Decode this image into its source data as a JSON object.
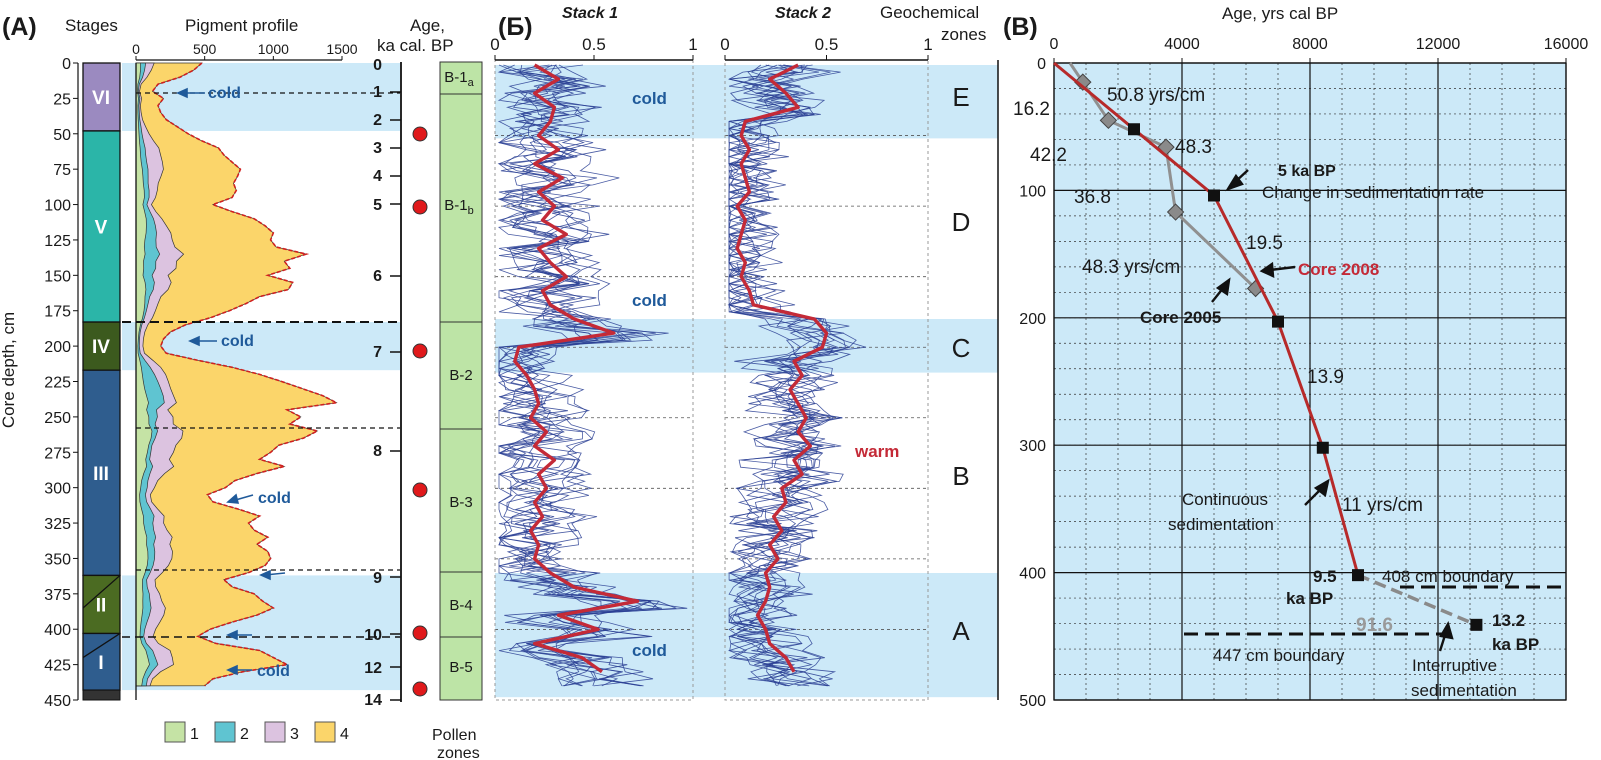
{
  "colors": {
    "band": "#cce9f8",
    "stack_mean": "#c42a37",
    "stack_lines": "#2a3f94",
    "age_line_2008": "#b72a2a",
    "age_line_2005": "#909090",
    "pollen": "#bde4a6",
    "cold_label": "#1f5a9a",
    "pigment_1": "#c5e3a5",
    "pigment_2": "#5fc4d1",
    "pigment_3": "#dcc3e0",
    "pigment_4": "#fbd56a",
    "stage_VI": "#9b8ac0",
    "stage_V": "#2bb5a8",
    "stage_IV": "#3c5a1e",
    "stage_III": "#2f5d8e",
    "stage_II": "#4b6b22",
    "stage_I": "#2f5d8e"
  },
  "panelA": {
    "panel_label": "(A)",
    "stages_header": "Stages",
    "pigment_header": "Pigment profile",
    "age_header_1": "Age,",
    "age_header_2": "ka cal. BP",
    "pollen_label_1": "Pollen",
    "pollen_label_2": "zones",
    "depth_label": "Core depth, cm",
    "cold_labels": [
      "cold",
      "cold",
      "cold",
      "cold"
    ],
    "legend": [
      "1",
      "2",
      "3",
      "4"
    ]
  },
  "panelB_cyr": {
    "panel_label": "(Б)",
    "stack1": "Stack 1",
    "stack2": "Stack 2",
    "geo_header_1": "Geochemical",
    "geo_header_2": "zones",
    "cold_1": "cold",
    "cold_2": "cold",
    "cold_3": "cold",
    "warm": "warm"
  },
  "panelB_lat": {
    "panel_label": "(B)",
    "age_axis_title": "Age, yrs cal BP",
    "rates": [
      "50.8 yrs/cm",
      "48.3",
      "16.2",
      "42.2",
      "36.8",
      "19.5",
      "48.3 yrs/cm",
      "13.9",
      "11 yrs/cm",
      "91.6"
    ],
    "annot_5ka": "5 ka BP",
    "annot_change": "Change in sedimentation rate",
    "annot_core2008": "Core 2008",
    "annot_core2005": "Core 2005",
    "annot_continuous_1": "Continuous",
    "annot_continuous_2": "sedimentation",
    "annot_95": "9.5",
    "annot_95b": "ka BP",
    "annot_132": "13.2",
    "annot_132b": "ka BP",
    "annot_408": "408 cm boundary",
    "annot_447": "447 cm boundary",
    "annot_interr_1": "Interruptive",
    "annot_interr_2": "sedimentation"
  },
  "chart_data": [
    {
      "type": "area",
      "title": "Pigment profile",
      "ylabel": "Core depth, cm",
      "ylim": [
        450,
        0
      ],
      "xlim": [
        0,
        1500
      ],
      "xticks": [
        0,
        500,
        1000,
        1500
      ],
      "yticks": [
        0,
        25,
        50,
        75,
        100,
        125,
        150,
        175,
        200,
        225,
        250,
        275,
        300,
        325,
        350,
        375,
        400,
        425,
        450
      ],
      "legend": [
        "1",
        "2",
        "3",
        "4"
      ],
      "stages": [
        {
          "name": "VI",
          "top": 0,
          "bottom": 48
        },
        {
          "name": "V",
          "top": 48,
          "bottom": 183
        },
        {
          "name": "IV",
          "top": 183,
          "bottom": 217
        },
        {
          "name": "III",
          "top": 217,
          "bottom": 362
        },
        {
          "name": "II",
          "top": 362,
          "bottom": 403
        },
        {
          "name": "I",
          "top": 403,
          "bottom": 443
        }
      ],
      "cold_bands_depth": [
        [
          0,
          48
        ],
        [
          183,
          217
        ],
        [
          362,
          443
        ]
      ],
      "total_profile": {
        "depth": [
          0,
          5,
          10,
          15,
          20,
          25,
          30,
          35,
          40,
          45,
          50,
          55,
          60,
          65,
          70,
          75,
          80,
          85,
          90,
          95,
          100,
          105,
          110,
          115,
          120,
          125,
          130,
          135,
          140,
          145,
          150,
          155,
          160,
          165,
          170,
          175,
          180,
          185,
          190,
          195,
          200,
          205,
          210,
          215,
          220,
          225,
          230,
          235,
          240,
          245,
          250,
          255,
          260,
          265,
          270,
          275,
          280,
          285,
          290,
          295,
          300,
          305,
          310,
          315,
          320,
          325,
          330,
          335,
          340,
          345,
          350,
          355,
          360,
          365,
          370,
          375,
          380,
          385,
          390,
          395,
          400,
          405,
          410,
          415,
          420,
          425,
          430,
          435,
          440
        ],
        "value": [
          480,
          420,
          320,
          160,
          120,
          200,
          160,
          180,
          220,
          300,
          380,
          480,
          600,
          640,
          700,
          760,
          740,
          710,
          730,
          700,
          560,
          700,
          860,
          940,
          1000,
          980,
          1020,
          1240,
          1080,
          1120,
          960,
          1140,
          1110,
          900,
          800,
          680,
          540,
          360,
          250,
          200,
          180,
          220,
          450,
          700,
          900,
          1060,
          1210,
          1360,
          1460,
          1100,
          1200,
          1120,
          1320,
          1220,
          1040,
          980,
          900,
          1080,
          880,
          720,
          650,
          520,
          560,
          740,
          900,
          820,
          860,
          960,
          880,
          960,
          980,
          940,
          820,
          640,
          700,
          860,
          920,
          1000,
          880,
          700,
          540,
          450,
          580,
          900,
          1000,
          1100,
          780,
          560,
          500
        ]
      }
    },
    {
      "type": "line",
      "title": "Stack 1",
      "xlim": [
        0,
        1
      ],
      "xticks": [
        "0",
        "0.5",
        "1"
      ],
      "mean_series": {
        "depth": [
          0,
          10,
          20,
          30,
          40,
          50,
          60,
          70,
          80,
          90,
          100,
          110,
          120,
          130,
          140,
          150,
          160,
          170,
          180,
          190,
          200,
          210,
          220,
          230,
          240,
          250,
          260,
          270,
          280,
          290,
          300,
          310,
          320,
          330,
          340,
          350,
          360,
          370,
          380,
          390,
          400,
          410,
          420,
          430
        ],
        "value": [
          0.2,
          0.32,
          0.2,
          0.3,
          0.28,
          0.22,
          0.32,
          0.2,
          0.34,
          0.22,
          0.3,
          0.24,
          0.36,
          0.22,
          0.28,
          0.36,
          0.24,
          0.28,
          0.4,
          0.6,
          0.12,
          0.1,
          0.16,
          0.2,
          0.22,
          0.18,
          0.26,
          0.2,
          0.3,
          0.22,
          0.26,
          0.2,
          0.24,
          0.18,
          0.22,
          0.2,
          0.28,
          0.4,
          0.72,
          0.32,
          0.52,
          0.2,
          0.44,
          0.54
        ]
      }
    },
    {
      "type": "line",
      "title": "Stack 2",
      "xlim": [
        0,
        1
      ],
      "xticks": [
        "0",
        "0.5",
        "1"
      ],
      "mean_series": {
        "depth": [
          0,
          10,
          20,
          30,
          40,
          50,
          60,
          70,
          80,
          90,
          100,
          110,
          120,
          130,
          140,
          150,
          160,
          170,
          180,
          190,
          200,
          210,
          220,
          230,
          240,
          250,
          260,
          270,
          280,
          290,
          300,
          310,
          320,
          330,
          340,
          350,
          360,
          370,
          380,
          390,
          400,
          410,
          420,
          430
        ],
        "value": [
          0.36,
          0.22,
          0.3,
          0.36,
          0.1,
          0.08,
          0.12,
          0.08,
          0.1,
          0.12,
          0.06,
          0.1,
          0.08,
          0.06,
          0.1,
          0.08,
          0.12,
          0.14,
          0.44,
          0.5,
          0.48,
          0.34,
          0.38,
          0.32,
          0.36,
          0.4,
          0.36,
          0.42,
          0.34,
          0.38,
          0.28,
          0.3,
          0.24,
          0.28,
          0.22,
          0.26,
          0.2,
          0.22,
          0.2,
          0.16,
          0.2,
          0.22,
          0.3,
          0.34
        ]
      },
      "geochemical_zones": [
        {
          "name": "E",
          "top": 0,
          "bottom": 52
        },
        {
          "name": "D",
          "top": 52,
          "bottom": 180
        },
        {
          "name": "C",
          "top": 180,
          "bottom": 218
        },
        {
          "name": "B",
          "top": 218,
          "bottom": 360
        },
        {
          "name": "A",
          "top": 360,
          "bottom": 448
        }
      ]
    },
    {
      "type": "scatter",
      "title": "Age, yrs cal BP",
      "xlim": [
        0,
        16000
      ],
      "ylim": [
        500,
        0
      ],
      "xticks": [
        0,
        4000,
        8000,
        12000,
        16000
      ],
      "yticks": [
        0,
        100,
        200,
        300,
        400,
        500
      ],
      "series": [
        {
          "name": "Core 2008",
          "x": [
            0,
            2500,
            5000,
            7000,
            8400,
            9500,
            13200
          ],
          "y": [
            0,
            52,
            104,
            203,
            302,
            402,
            441
          ]
        },
        {
          "name": "Core 2005",
          "x": [
            500,
            900,
            1700,
            3500,
            3800,
            6300
          ],
          "y": [
            0,
            15,
            45,
            66,
            117,
            177
          ]
        }
      ]
    }
  ]
}
